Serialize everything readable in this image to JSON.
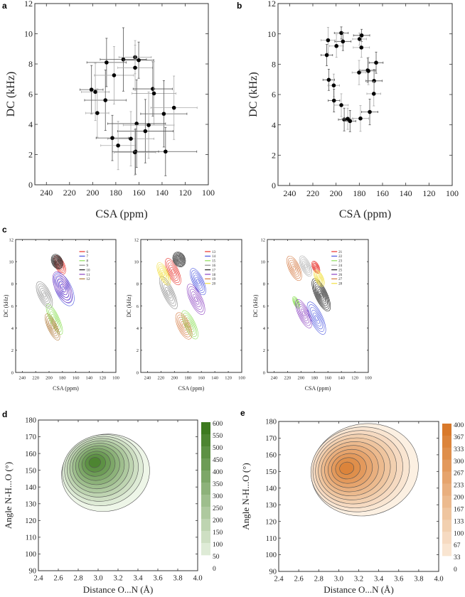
{
  "chart_data": [
    {
      "panel": "a",
      "type": "scatter",
      "xlabel": "CSA (ppm)",
      "ylabel": "DC (kHz)",
      "xlim": [
        250,
        100
      ],
      "ylim": [
        0,
        12
      ],
      "x_ticks": [
        240,
        220,
        200,
        180,
        160,
        140,
        120,
        100
      ],
      "y_ticks": [
        0,
        2,
        4,
        6,
        8,
        10,
        12
      ],
      "grid": false,
      "marker_color": "#000000",
      "errorbar_colors": [
        "#555555",
        "#aaaaaa"
      ],
      "points": [
        {
          "x": 201,
          "y": 6.3,
          "xerr": 10,
          "yerr": 1.6
        },
        {
          "x": 197.7,
          "y": 6.15,
          "xerr": 12,
          "yerr": 1.9
        },
        {
          "x": 189,
          "y": 5.6,
          "xerr": 18,
          "yerr": 2.0
        },
        {
          "x": 196,
          "y": 4.75,
          "xerr": 10,
          "yerr": 1.6
        },
        {
          "x": 188,
          "y": 8.1,
          "xerr": 17,
          "yerr": 1.6
        },
        {
          "x": 181.5,
          "y": 7.25,
          "xerr": 17,
          "yerr": 1.9
        },
        {
          "x": 173.5,
          "y": 8.3,
          "xerr": 20,
          "yerr": 2.1
        },
        {
          "x": 163.3,
          "y": 8.45,
          "xerr": 14,
          "yerr": 1.1
        },
        {
          "x": 160.2,
          "y": 8.25,
          "xerr": 13,
          "yerr": 1.2
        },
        {
          "x": 163.3,
          "y": 7.75,
          "xerr": 15,
          "yerr": 1.5
        },
        {
          "x": 148,
          "y": 6.35,
          "xerr": 17,
          "yerr": 1.8
        },
        {
          "x": 147,
          "y": 6.05,
          "xerr": 19,
          "yerr": 2.1
        },
        {
          "x": 138.5,
          "y": 4.7,
          "xerr": 20,
          "yerr": 2.2
        },
        {
          "x": 129.7,
          "y": 5.1,
          "xerr": 20,
          "yerr": 2.1
        },
        {
          "x": 162,
          "y": 4.05,
          "xerr": 25,
          "yerr": 2.9
        },
        {
          "x": 151.6,
          "y": 3.95,
          "xerr": 22,
          "yerr": 2.2
        },
        {
          "x": 154.5,
          "y": 3.55,
          "xerr": 24,
          "yerr": 2.1
        },
        {
          "x": 167,
          "y": 3.05,
          "xerr": 20,
          "yerr": 1.8
        },
        {
          "x": 183,
          "y": 3.1,
          "xerr": 14,
          "yerr": 1.5
        },
        {
          "x": 178,
          "y": 2.6,
          "xerr": 15,
          "yerr": 1.6
        },
        {
          "x": 163,
          "y": 2.2,
          "xerr": 20,
          "yerr": 1.5
        },
        {
          "x": 163.5,
          "y": 2.15,
          "xerr": 18,
          "yerr": 1.5
        },
        {
          "x": 137,
          "y": 2.2,
          "xerr": 27,
          "yerr": 1.6
        }
      ]
    },
    {
      "panel": "b",
      "type": "scatter",
      "xlabel": "CSA (ppm)",
      "ylabel": "DC (kHz)",
      "xlim": [
        250,
        100
      ],
      "ylim": [
        0,
        12
      ],
      "x_ticks": [
        240,
        220,
        200,
        180,
        160,
        140,
        120,
        100
      ],
      "y_ticks": [
        0,
        2,
        4,
        6,
        8,
        10,
        12
      ],
      "grid": false,
      "marker_color": "#000000",
      "errorbar_colors": [
        "#555555",
        "#aaaaaa"
      ],
      "points": [
        {
          "x": 195.5,
          "y": 10.06,
          "xerr": 6,
          "yerr": 0.4
        },
        {
          "x": 206.9,
          "y": 9.58,
          "xerr": 6,
          "yerr": 0.85
        },
        {
          "x": 194.1,
          "y": 9.5,
          "xerr": 7,
          "yerr": 0.6
        },
        {
          "x": 199.7,
          "y": 9.2,
          "xerr": 6,
          "yerr": 0.75
        },
        {
          "x": 208,
          "y": 8.6,
          "xerr": 5,
          "yerr": 0.7
        },
        {
          "x": 179.8,
          "y": 9.66,
          "xerr": 6,
          "yerr": 0.4
        },
        {
          "x": 178,
          "y": 9.9,
          "xerr": 7,
          "yerr": 0.4
        },
        {
          "x": 178.2,
          "y": 9.1,
          "xerr": 7,
          "yerr": 0.65
        },
        {
          "x": 165.5,
          "y": 8.1,
          "xerr": 6,
          "yerr": 0.7
        },
        {
          "x": 180.2,
          "y": 7.45,
          "xerr": 6,
          "yerr": 0.8
        },
        {
          "x": 172.7,
          "y": 7.6,
          "xerr": 7,
          "yerr": 0.8
        },
        {
          "x": 172.2,
          "y": 7.55,
          "xerr": 6,
          "yerr": 0.9
        },
        {
          "x": 167.3,
          "y": 6.9,
          "xerr": 7,
          "yerr": 0.75
        },
        {
          "x": 167.5,
          "y": 6.05,
          "xerr": 6,
          "yerr": 0.8
        },
        {
          "x": 171,
          "y": 4.85,
          "xerr": 7,
          "yerr": 0.85
        },
        {
          "x": 179,
          "y": 4.42,
          "xerr": 7,
          "yerr": 0.85
        },
        {
          "x": 206.3,
          "y": 6.97,
          "xerr": 5,
          "yerr": 0.7
        },
        {
          "x": 202,
          "y": 6.6,
          "xerr": 5,
          "yerr": 0.75
        },
        {
          "x": 201.8,
          "y": 5.6,
          "xerr": 5,
          "yerr": 0.75
        },
        {
          "x": 195.5,
          "y": 5.3,
          "xerr": 6,
          "yerr": 0.75
        },
        {
          "x": 193,
          "y": 4.35,
          "xerr": 5,
          "yerr": 0.75
        },
        {
          "x": 190,
          "y": 4.4,
          "xerr": 5,
          "yerr": 0.7
        },
        {
          "x": 188,
          "y": 4.25,
          "xerr": 5,
          "yerr": 0.7
        }
      ]
    },
    {
      "panel": "c",
      "type": "contour",
      "xlabel": "CSA (ppm)",
      "ylabel": "DC (kHz)",
      "xlim": [
        250,
        100
      ],
      "ylim": [
        0,
        12
      ],
      "x_ticks": [
        240,
        220,
        200,
        180,
        160,
        140,
        120,
        100
      ],
      "y_ticks": [
        0,
        2,
        4,
        6,
        8,
        10,
        12
      ],
      "legend_position": "top-right",
      "series": [
        {
          "name": "6",
          "color": "#e8302a",
          "center": [
            184,
            9.7
          ],
          "spread": [
            7,
            0.9
          ]
        },
        {
          "name": "7",
          "color": "#4a55e0",
          "center": [
            178,
            7.5
          ],
          "spread": [
            12,
            1.6
          ]
        },
        {
          "name": "8",
          "color": "#8ee05a",
          "center": [
            192,
            4.8
          ],
          "spread": [
            7,
            1.5
          ]
        },
        {
          "name": "9",
          "color": "#8a8a8a",
          "center": [
            207,
            7.0
          ],
          "spread": [
            9,
            1.3
          ]
        },
        {
          "name": "10",
          "color": "#222222",
          "center": [
            188,
            10.0
          ],
          "spread": [
            8,
            0.7
          ]
        },
        {
          "name": "11",
          "color": "#8a3fc0",
          "center": [
            180,
            7.7
          ],
          "spread": [
            11,
            1.5
          ]
        },
        {
          "name": "12",
          "color": "#b07a3a",
          "center": [
            195,
            4.1
          ],
          "spread": [
            7,
            1.3
          ]
        }
      ]
    },
    {
      "panel": "",
      "type": "contour",
      "xlabel": "CSA (ppm)",
      "ylabel": "DC (kHz)",
      "xlim": [
        250,
        100
      ],
      "ylim": [
        0,
        12
      ],
      "x_ticks": [
        240,
        220,
        200,
        180,
        160,
        140,
        120,
        100
      ],
      "y_ticks": [
        0,
        2,
        4,
        6,
        8,
        10,
        12
      ],
      "legend_position": "top-right",
      "series": [
        {
          "name": "13",
          "color": "#e8302a",
          "center": [
            202,
            9.1
          ],
          "spread": [
            8,
            1.3
          ]
        },
        {
          "name": "14",
          "color": "#4a55e0",
          "center": [
            165,
            8.2
          ],
          "spread": [
            8,
            1.3
          ]
        },
        {
          "name": "15",
          "color": "#8ee05a",
          "center": [
            177,
            4.3
          ],
          "spread": [
            8,
            1.4
          ]
        },
        {
          "name": "16",
          "color": "#8a8a8a",
          "center": [
            209,
            7.2
          ],
          "spread": [
            8,
            1.6
          ]
        },
        {
          "name": "17",
          "color": "#222222",
          "center": [
            193,
            10.2
          ],
          "spread": [
            9,
            0.7
          ]
        },
        {
          "name": "18",
          "color": "#8a3fc0",
          "center": [
            168,
            6.6
          ],
          "spread": [
            9,
            1.5
          ]
        },
        {
          "name": "19",
          "color": "#d47840",
          "center": [
            186,
            4.2
          ],
          "spread": [
            9,
            1.3
          ]
        },
        {
          "name": "20",
          "color": "#f2e040",
          "center": [
            216,
            8.9
          ],
          "spread": [
            7,
            1.1
          ]
        }
      ]
    },
    {
      "panel": "",
      "type": "contour",
      "xlabel": "CSA (ppm)",
      "ylabel": "DC (kHz)",
      "xlim": [
        250,
        100
      ],
      "ylim": [
        0,
        12
      ],
      "x_ticks": [
        240,
        220,
        200,
        180,
        160,
        140,
        120,
        100
      ],
      "y_ticks": [
        0,
        2,
        4,
        6,
        8,
        10,
        12
      ],
      "legend_position": "top-right",
      "series": [
        {
          "name": "21",
          "color": "#e8302a",
          "center": [
            178,
            9.5
          ],
          "spread": [
            5,
            0.6
          ]
        },
        {
          "name": "22",
          "color": "#4a55e0",
          "center": [
            177,
            4.9
          ],
          "spread": [
            9,
            1.6
          ]
        },
        {
          "name": "23",
          "color": "#8ee05a",
          "center": [
            207,
            6.3
          ],
          "spread": [
            4,
            0.6
          ]
        },
        {
          "name": "24",
          "color": "#b0b0b0",
          "center": [
            193,
            9.6
          ],
          "spread": [
            7,
            1.0
          ]
        },
        {
          "name": "25",
          "color": "#222222",
          "center": [
            170,
            7.0
          ],
          "spread": [
            9,
            1.6
          ]
        },
        {
          "name": "26",
          "color": "#8a3fc0",
          "center": [
            196,
            5.3
          ],
          "spread": [
            8,
            1.4
          ]
        },
        {
          "name": "27",
          "color": "#d47840",
          "center": [
            210,
            9.4
          ],
          "spread": [
            8,
            1.2
          ]
        },
        {
          "name": "28",
          "color": "#f2e040",
          "center": [
            173,
            8.5
          ],
          "spread": [
            6,
            0.8
          ]
        }
      ]
    },
    {
      "panel": "d",
      "type": "heatmap",
      "xlabel": "Distance O...N (Å)",
      "ylabel": "Angle N-H...O (°)",
      "xlim": [
        2.4,
        4.0
      ],
      "ylim": [
        90,
        180
      ],
      "x_ticks": [
        "2.4",
        "2.6",
        "2.8",
        "3.0",
        "3.2",
        "3.4",
        "3.6",
        "3.8",
        "4.0"
      ],
      "y_ticks": [
        90,
        100,
        110,
        120,
        130,
        140,
        150,
        160,
        170,
        180
      ],
      "peak": [
        2.96,
        155
      ],
      "outer_contour_x_range": [
        2.63,
        3.52
      ],
      "outer_contour_y_range": [
        125.5,
        171.5
      ],
      "colorbar_levels": [
        600,
        550,
        500,
        450,
        400,
        350,
        300,
        250,
        200,
        150,
        100,
        50,
        0
      ],
      "colormap": [
        "#eef6e8",
        "#3d7a1f"
      ],
      "legend_position": "right"
    },
    {
      "panel": "e",
      "type": "heatmap",
      "xlabel": "Distance O...N (Å)",
      "ylabel": "Angle N-H...O (°)",
      "xlim": [
        2.4,
        4.0
      ],
      "ylim": [
        90,
        180
      ],
      "x_ticks": [
        "2.4",
        "2.6",
        "2.8",
        "3.0",
        "3.2",
        "3.4",
        "3.6",
        "3.8",
        "4.0"
      ],
      "y_ticks": [
        90,
        100,
        110,
        120,
        130,
        140,
        150,
        160,
        170,
        180
      ],
      "peak": [
        3.07,
        152
      ],
      "outer_contour_x_range": [
        2.72,
        3.8
      ],
      "outer_contour_y_range": [
        123.5,
        178.5
      ],
      "colorbar_levels": [
        400,
        367,
        333,
        300,
        267,
        233,
        200,
        167,
        133,
        100,
        67,
        33,
        0
      ],
      "colormap": [
        "#fcf0e2",
        "#d9792a"
      ],
      "legend_position": "right"
    }
  ]
}
